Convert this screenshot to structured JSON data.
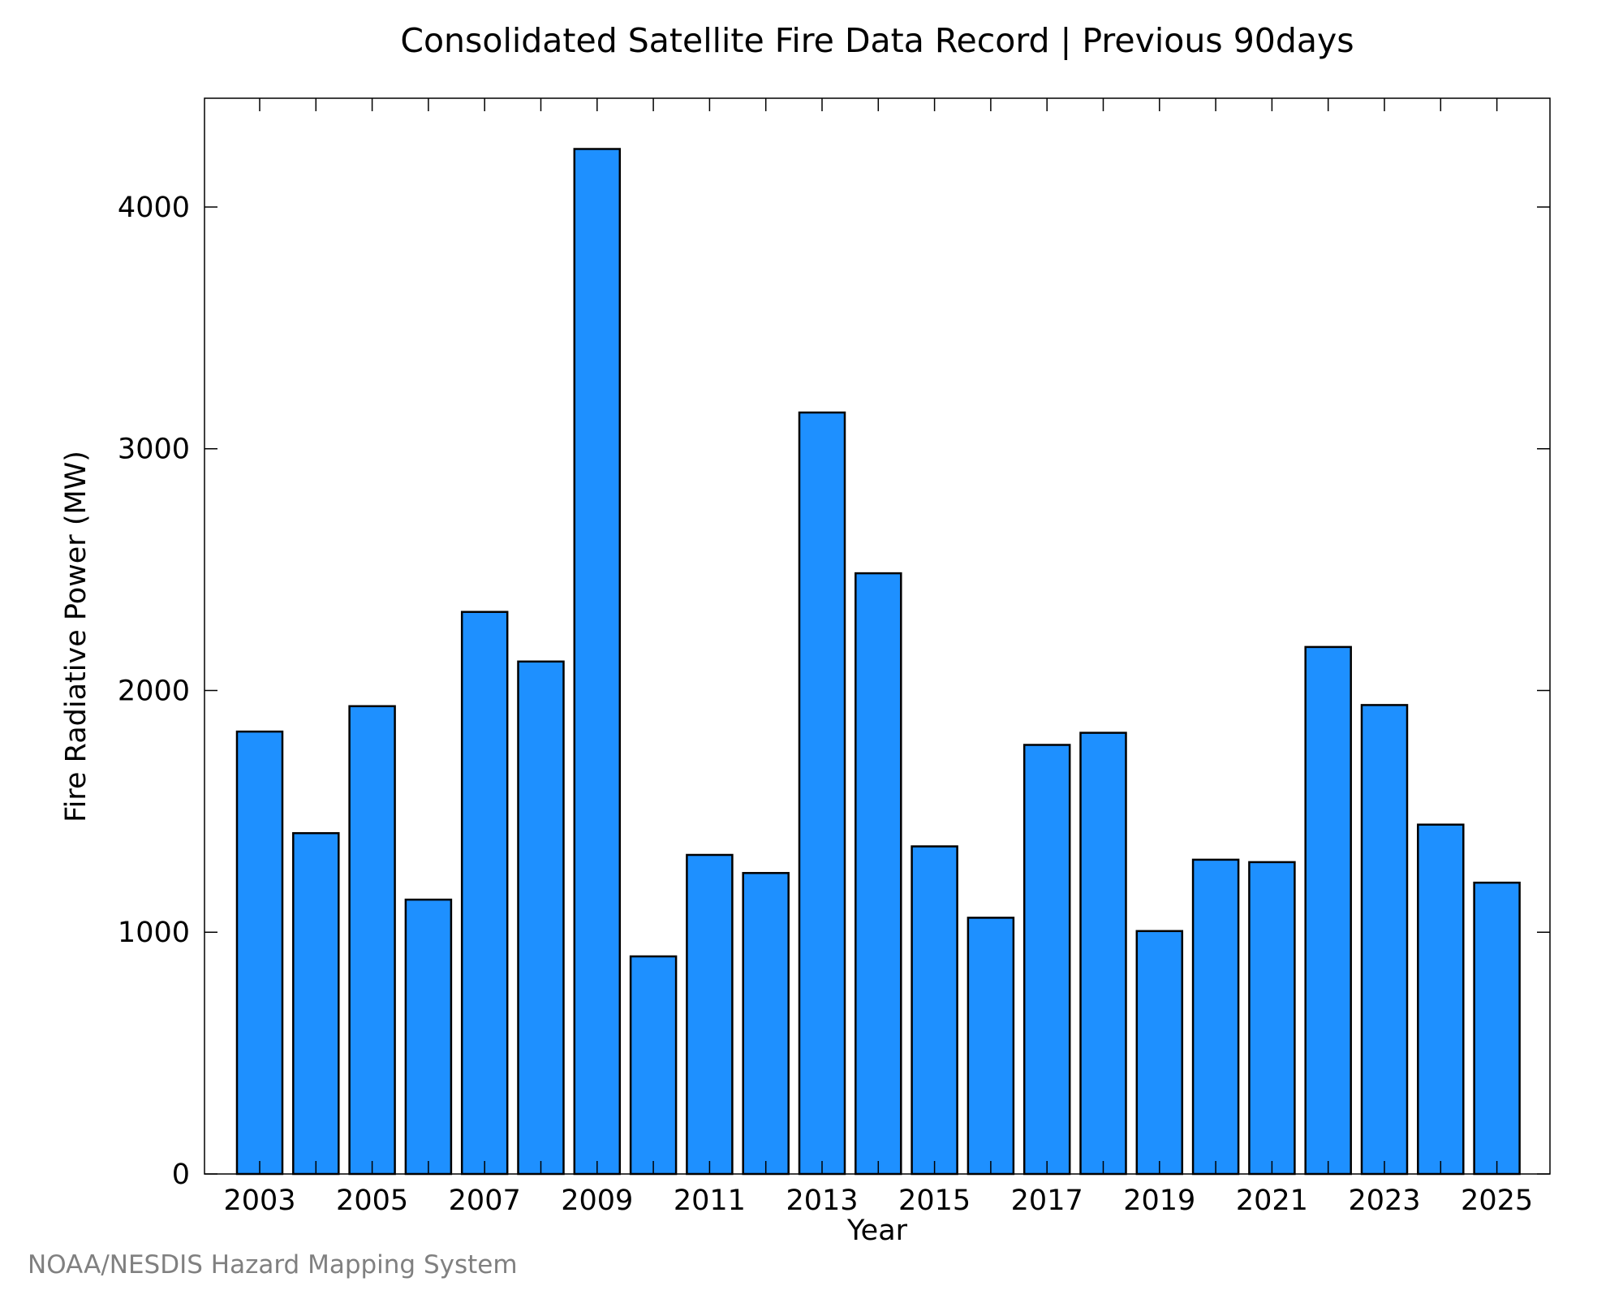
{
  "chart_data": {
    "type": "bar",
    "title": "Consolidated Satellite Fire Data Record | Previous 90days",
    "xlabel": "Year",
    "ylabel": "Fire Radiative Power (MW)",
    "categories": [
      "2003",
      "2004",
      "2005",
      "2006",
      "2007",
      "2008",
      "2009",
      "2010",
      "2011",
      "2012",
      "2013",
      "2014",
      "2015",
      "2016",
      "2017",
      "2018",
      "2019",
      "2020",
      "2021",
      "2022",
      "2023",
      "2024",
      "2025"
    ],
    "values": [
      1830,
      1410,
      1935,
      1135,
      2325,
      2120,
      4240,
      900,
      1320,
      1245,
      3150,
      2485,
      1355,
      1060,
      1775,
      1825,
      1005,
      1300,
      1290,
      2180,
      1940,
      1445,
      1205
    ],
    "x_tick_labels": [
      "2003",
      "2005",
      "2007",
      "2009",
      "2011",
      "2013",
      "2015",
      "2017",
      "2019",
      "2021",
      "2023",
      "2025"
    ],
    "y_ticks": [
      0,
      1000,
      2000,
      3000,
      4000
    ],
    "ylim": [
      0,
      4450
    ],
    "grid": false,
    "bar_color": "#1e90ff",
    "edge_color": "#000000"
  },
  "credit": "NOAA/NESDIS Hazard Mapping System"
}
